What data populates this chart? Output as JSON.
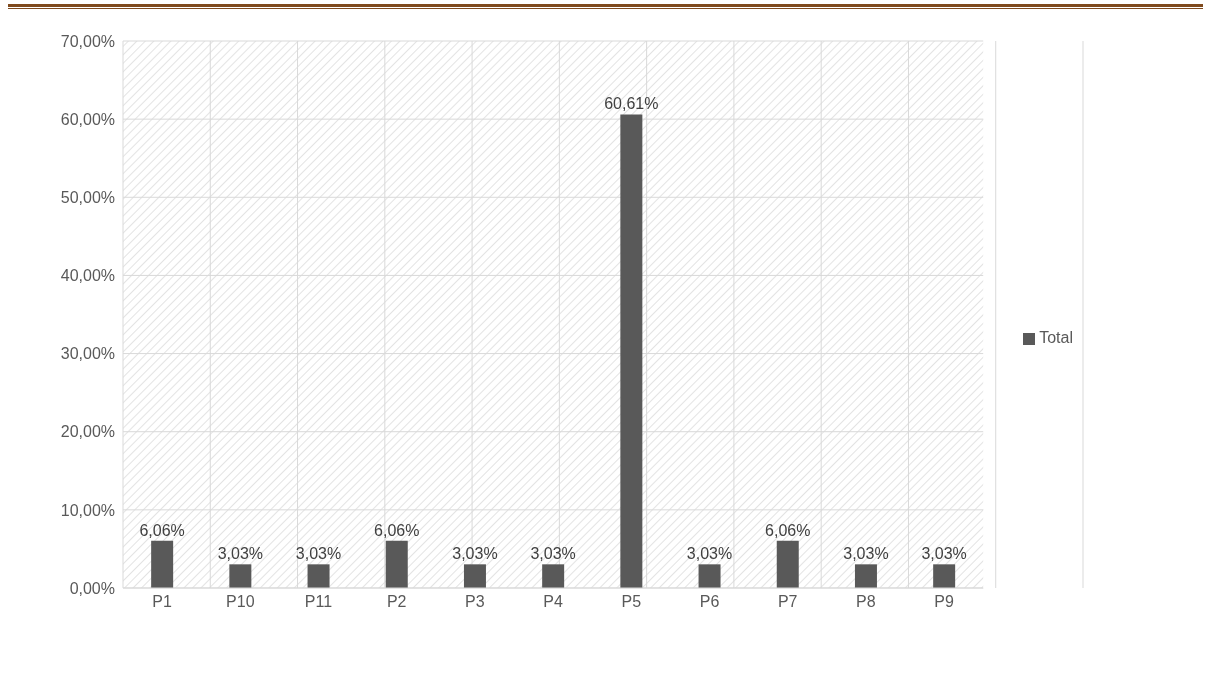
{
  "chart_data": {
    "type": "bar",
    "categories": [
      "P1",
      "P10",
      "P11",
      "P2",
      "P3",
      "P4",
      "P5",
      "P6",
      "P7",
      "P8",
      "P9"
    ],
    "series": [
      {
        "name": "Total",
        "color": "#595959",
        "values": [
          6.06,
          3.03,
          3.03,
          6.06,
          3.03,
          3.03,
          60.61,
          3.03,
          6.06,
          3.03,
          3.03
        ],
        "value_labels": [
          "6,06%",
          "3,03%",
          "3,03%",
          "6,06%",
          "3,03%",
          "3,03%",
          "60,61%",
          "3,03%",
          "6,06%",
          "3,03%",
          "3,03%"
        ]
      }
    ],
    "ylim": [
      0,
      70
    ],
    "yticks": [
      {
        "value": 0,
        "label": "0,00%"
      },
      {
        "value": 10,
        "label": "10,00%"
      },
      {
        "value": 20,
        "label": "20,00%"
      },
      {
        "value": 30,
        "label": "30,00%"
      },
      {
        "value": 40,
        "label": "40,00%"
      },
      {
        "value": 50,
        "label": "50,00%"
      },
      {
        "value": 60,
        "label": "60,00%"
      },
      {
        "value": 70,
        "label": "70,00%"
      }
    ],
    "grid": true,
    "legend": "right"
  }
}
